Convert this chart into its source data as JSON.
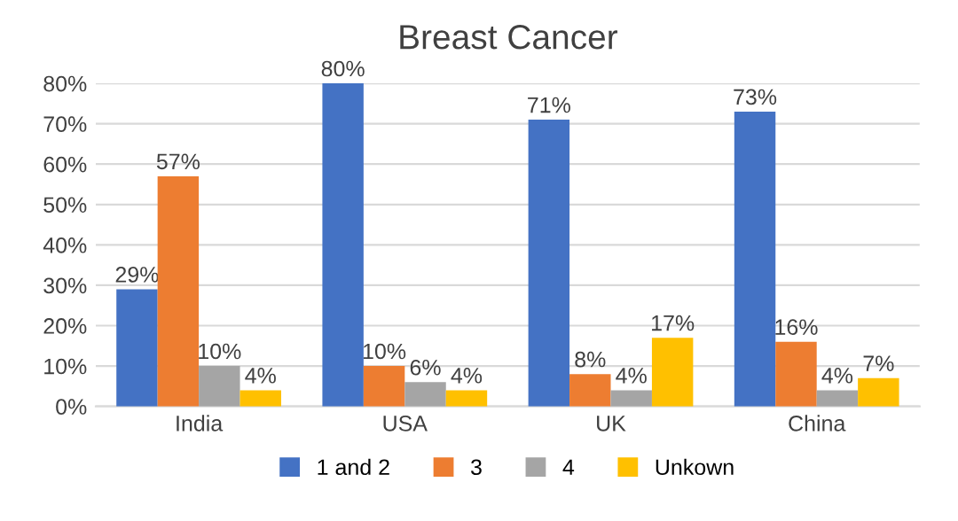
{
  "chart_data": {
    "type": "bar",
    "title": "Breast Cancer",
    "categories": [
      "India",
      "USA",
      "UK",
      "China"
    ],
    "series": [
      {
        "name": "1 and 2",
        "color": "#4472c4",
        "values": [
          29,
          80,
          71,
          73
        ],
        "value_labels": [
          "29%",
          "80%",
          "71%",
          "73%"
        ]
      },
      {
        "name": "3",
        "color": "#ed7d31",
        "values": [
          57,
          10,
          8,
          16
        ],
        "value_labels": [
          "57%",
          "10%",
          "8%",
          "16%"
        ]
      },
      {
        "name": "4",
        "color": "#a5a5a5",
        "values": [
          10,
          6,
          4,
          4
        ],
        "value_labels": [
          "10%",
          "6%",
          "4%",
          "4%"
        ]
      },
      {
        "name": "Unkown",
        "color": "#ffc000",
        "values": [
          4,
          4,
          17,
          7
        ],
        "value_labels": [
          "4%",
          "4%",
          "17%",
          "7%"
        ]
      }
    ],
    "ylim": [
      0,
      80
    ],
    "yticks": [
      {
        "value": 0,
        "label": "0%"
      },
      {
        "value": 10,
        "label": "10%"
      },
      {
        "value": 20,
        "label": "20%"
      },
      {
        "value": 30,
        "label": "30%"
      },
      {
        "value": 40,
        "label": "40%"
      },
      {
        "value": 50,
        "label": "50%"
      },
      {
        "value": 60,
        "label": "60%"
      },
      {
        "value": 70,
        "label": "70%"
      },
      {
        "value": 80,
        "label": "80%"
      }
    ],
    "grid": "y",
    "legend": "bottom"
  }
}
